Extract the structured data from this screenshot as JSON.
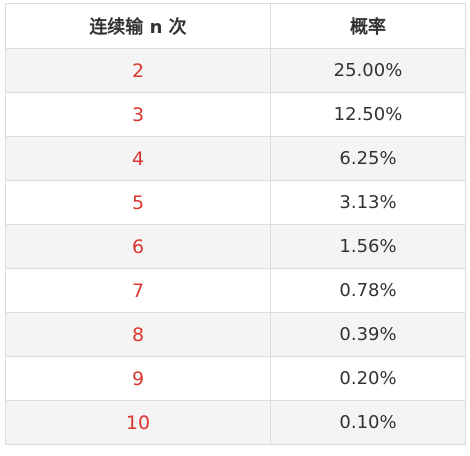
{
  "table": {
    "headers": [
      "连续输 n 次",
      "概率"
    ],
    "rows": [
      {
        "n": "2",
        "prob": "25.00%"
      },
      {
        "n": "3",
        "prob": "12.50%"
      },
      {
        "n": "4",
        "prob": "6.25%"
      },
      {
        "n": "5",
        "prob": "3.13%"
      },
      {
        "n": "6",
        "prob": "1.56%"
      },
      {
        "n": "7",
        "prob": "0.78%"
      },
      {
        "n": "8",
        "prob": "0.39%"
      },
      {
        "n": "9",
        "prob": "0.20%"
      },
      {
        "n": "10",
        "prob": "0.10%"
      }
    ]
  },
  "colors": {
    "n_value": "#d9372f",
    "text": "#333333",
    "stripe": "#f4f4f4",
    "border": "#dcdcdc"
  }
}
